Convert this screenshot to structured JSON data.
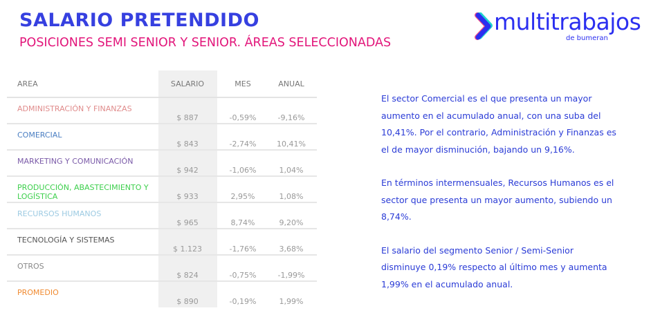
{
  "title": "SALARIO PRETENDIDO",
  "subtitle": "POSICIONES SEMI SENIOR Y SENIOR. ÁREAS SELECCIONADAS",
  "logo": {
    "name": "multitrabajos",
    "tagline": "de bumeran"
  },
  "table": {
    "headers": [
      "AREA",
      "SALARIO",
      "MES",
      "ANUAL"
    ],
    "rows": [
      {
        "area": "ADMINISTRACIÓN Y FINANZAS",
        "salario": "$ 887",
        "mes": "-0,59%",
        "anual": "-9,16%",
        "color": "#e08c8c"
      },
      {
        "area": "COMERCIAL",
        "salario": "$ 843",
        "mes": "-2,74%",
        "anual": "10,41%",
        "color": "#4a7ec2"
      },
      {
        "area": "MARKETING Y COMUNICACIÓN",
        "salario": "$ 942",
        "mes": "-1,06%",
        "anual": "1,04%",
        "color": "#7a5aa8"
      },
      {
        "area": "PRODUCCIÓN, ABASTECIMIENTO Y LOGÍSTICA",
        "salario": "$ 933",
        "mes": "2,95%",
        "anual": "1,08%",
        "color": "#3dcf4c"
      },
      {
        "area": "RECURSOS HUMANOS",
        "salario": "$ 965",
        "mes": "8,74%",
        "anual": "9,20%",
        "color": "#9ccae2"
      },
      {
        "area": "TECNOLOGÍA Y SISTEMAS",
        "salario": "$ 1.123",
        "mes": "-1,76%",
        "anual": "3,68%",
        "color": "#555555"
      },
      {
        "area": "OTROS",
        "salario": "$ 824",
        "mes": "-0,75%",
        "anual": "-1,99%",
        "color": "#888888"
      },
      {
        "area": "PROMEDIO",
        "salario": "$ 890",
        "mes": "-0,19%",
        "anual": "1,99%",
        "color": "#f08a30"
      }
    ]
  },
  "paragraphs": [
    "El sector Comercial es el que presenta un mayor aumento en el acumulado anual, con una suba del 10,41%. Por el contrario, Administración y Finanzas es el de mayor disminución, bajando un 9,16%.",
    "En términos intermensuales, Recursos Humanos es el sector que presenta un mayor aumento, subiendo un 8,74%.",
    "El salario del segmento Senior / Semi-Senior disminuye 0,19% respecto al último mes y aumenta 1,99% en el acumulado anual."
  ]
}
